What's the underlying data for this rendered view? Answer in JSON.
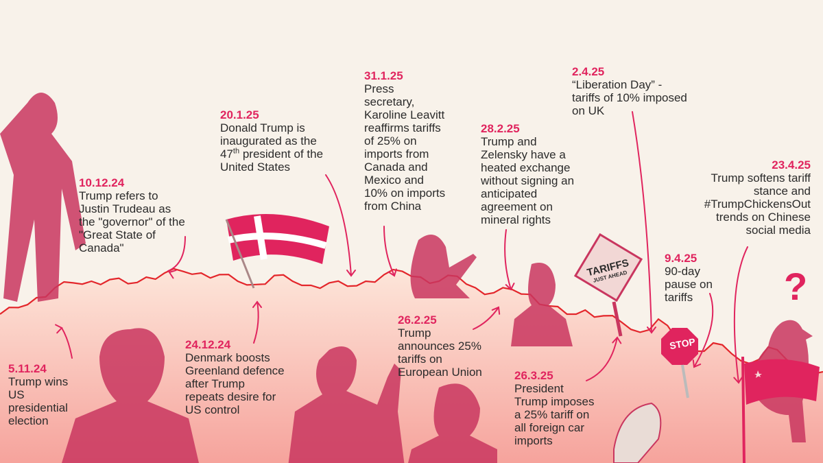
{
  "colors": {
    "background": "#f8f2ea",
    "accent": "#e0245e",
    "line": "#e3262b",
    "area_top": "#fbe0d2",
    "area_bottom": "#f7a6a0",
    "figure_tint": "#c9365f"
  },
  "events": [
    {
      "date": "5.11.24",
      "text": "Trump wins\nUS\npresidential\nelection"
    },
    {
      "date": "10.12.24",
      "text": "Trump refers to\nJustin Trudeau as\nthe \"governor\" of the\n\"Great State of\nCanada\""
    },
    {
      "date": "24.12.24",
      "text": "Denmark boosts\nGreenland defence\nafter Trump\nrepeats desire for\nUS control"
    },
    {
      "date": "20.1.25",
      "text_line1": "Donald Trump is",
      "text_line2": "inaugurated as the",
      "text_line3_pre": "47",
      "text_line3_sup": "th",
      "text_line3_post": " president of the",
      "text_line4": "United States"
    },
    {
      "date": "31.1.25",
      "text": "Press\nsecretary,\nKaroline Leavitt\nreaffirms tariffs\nof 25% on\nimports from\nCanada and\nMexico and\n10% on imports\nfrom China"
    },
    {
      "date": "26.2.25",
      "text": "Trump\nannounces 25%\ntariffs on\nEuropean Union"
    },
    {
      "date": "28.2.25",
      "text": "Trump and\nZelensky have a\nheated exchange\nwithout signing an\nanticipated\nagreement on\nmineral rights"
    },
    {
      "date": "26.3.25",
      "text": "President\nTrump imposes\na 25% tariff on\nall foreign car\nimports"
    },
    {
      "date": "2.4.25",
      "text": "“Liberation Day” -\ntariffs of 10% imposed\non UK"
    },
    {
      "date": "9.4.25",
      "text": "90-day\npause on\ntariffs"
    },
    {
      "date": "23.4.25",
      "text": "Trump softens tariff\nstance and\n#TrumpChickensOut\ntrends on Chinese\nsocial media"
    }
  ],
  "signs": {
    "tariffs_main": "TARIFFS",
    "tariffs_sub": "JUST AHEAD",
    "stop": "STOP",
    "question": "?"
  },
  "icons": {
    "figures": [
      "trump-walking-figure",
      "trudeau-figure",
      "denmark-flag-icon",
      "trump-inauguration-figure",
      "leavitt-figure",
      "von-der-leyen-figure",
      "zelensky-figure",
      "tariffs-sign-icon",
      "car-icon",
      "stop-sign-icon",
      "chicken-figure",
      "china-flag-icon",
      "question-mark-icon"
    ]
  },
  "chart_data": {
    "type": "area",
    "values": [
      0.1,
      0.18,
      0.3,
      0.42,
      0.48,
      0.5,
      0.52,
      0.47,
      0.55,
      0.6,
      0.62,
      0.6,
      0.58,
      0.5,
      0.46,
      0.57,
      0.5,
      0.45,
      0.48,
      0.44,
      0.5,
      0.58,
      0.62,
      0.55,
      0.5,
      0.56,
      0.42,
      0.36,
      0.4,
      0.34,
      0.2,
      0.1,
      0.15,
      0.08,
      0.0,
      -0.12,
      0.04,
      -0.2,
      -0.35,
      -0.25,
      -0.38,
      -0.5,
      -0.3,
      -0.45,
      -0.55,
      -0.6
    ]
  }
}
